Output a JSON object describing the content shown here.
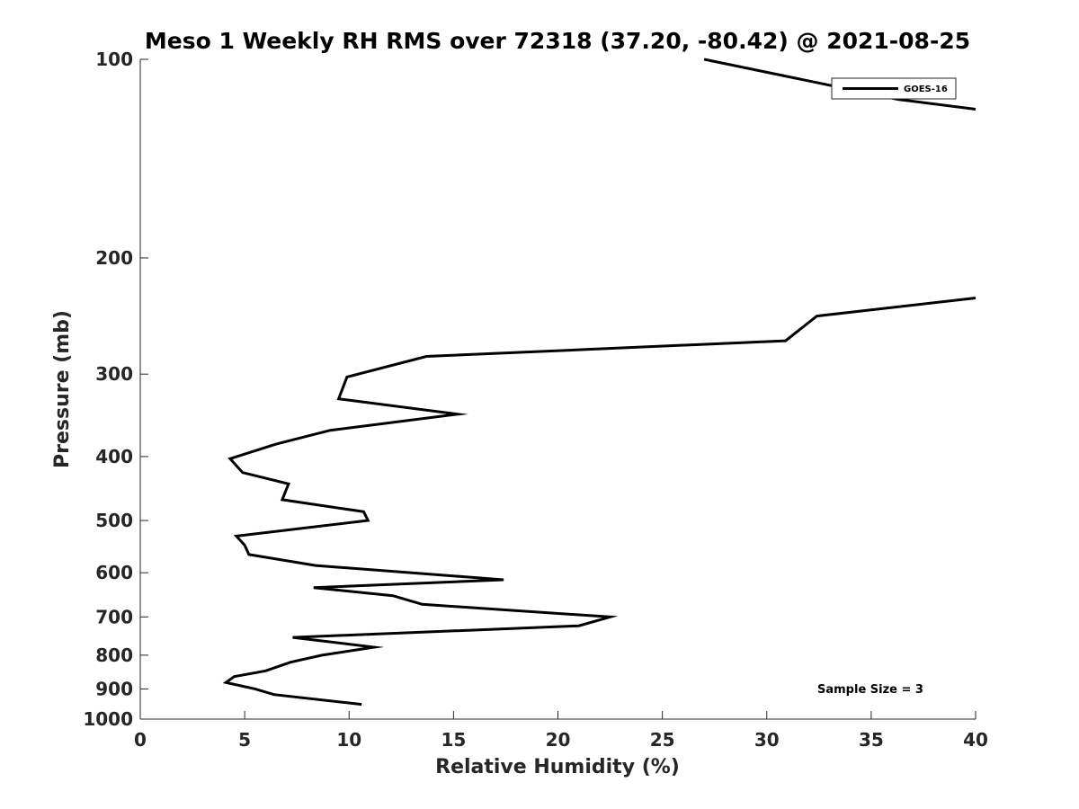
{
  "chart_data": {
    "type": "line",
    "title": "Meso 1 Weekly RH RMS over 72318 (37.20, -80.42) @ 2021-08-25",
    "xlabel": "Relative Humidity (%)",
    "ylabel": "Pressure (mb)",
    "xlim": [
      0,
      40
    ],
    "ylim": [
      100,
      1000
    ],
    "y_scale": "log",
    "y_reversed": true,
    "x_ticks": [
      "0",
      "5",
      "10",
      "15",
      "20",
      "25",
      "30",
      "35",
      "40"
    ],
    "y_ticks": [
      "100",
      "200",
      "300",
      "400",
      "500",
      "600",
      "700",
      "800",
      "900",
      "1000"
    ],
    "grid": false,
    "legend": {
      "position": "top-right",
      "entries": [
        "GOES-16"
      ]
    },
    "annotations": [
      "Sample Size = 3"
    ],
    "series": [
      {
        "name": "GOES-16",
        "color": "#000000",
        "segments": [
          {
            "x": [
              27.0,
              36.3,
              40.0
            ],
            "y": [
              100,
              115,
              119
            ]
          },
          {
            "x": [
              40.0,
              32.4,
              30.9,
              13.7,
              9.9,
              9.5,
              15.2,
              9.1,
              6.5,
              4.3,
              4.9,
              7.1,
              6.8,
              10.7,
              10.9,
              4.6,
              5.0,
              5.2,
              8.4,
              17.4,
              8.3,
              12.1,
              13.5,
              22.5,
              21.0,
              7.3,
              11.2,
              8.7,
              7.2,
              6.0,
              4.5,
              4.1,
              5.5,
              6.4,
              10.6
            ],
            "y": [
              230,
              245,
              267,
              282,
              303,
              327,
              345,
              365,
              383,
              403,
              423,
              440,
              465,
              485,
              500,
              528,
              545,
              563,
              585,
              615,
              632,
              650,
              670,
              700,
              722,
              752,
              778,
              800,
              820,
              845,
              862,
              880,
              900,
              918,
              950
            ]
          }
        ]
      }
    ]
  }
}
